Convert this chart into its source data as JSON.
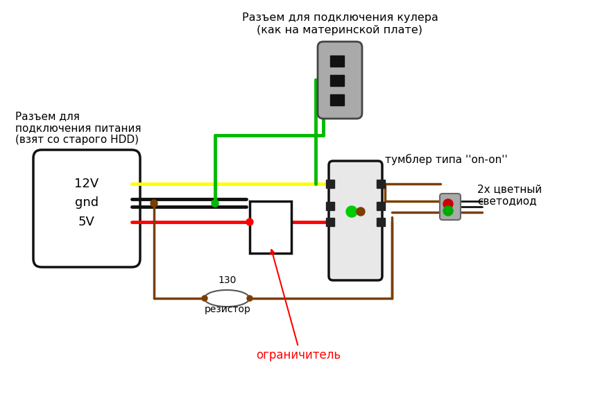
{
  "bg_color": "#ffffff",
  "title_connector_line1": "Разъем для подключения кулера",
  "title_connector_line2": "(как на материнской плате)",
  "title_power_line1": "Разъем для",
  "title_power_line2": "подключения питания",
  "title_power_line3": "(взят со старого HDD)",
  "label_12v": "12V",
  "label_gnd": "gnd",
  "label_5v": "5V",
  "label_tumbler": "тумблер типа ''on-on''",
  "label_resistor_val": "130",
  "label_resistor": "резистор",
  "label_limiter": "ограничитель",
  "label_led": "2х цветный\nсветодиод",
  "color_yellow": "#ffff00",
  "color_black": "#111111",
  "color_red": "#ff0000",
  "color_green": "#00bb00",
  "color_brown": "#7B3F00",
  "color_gray": "#888888",
  "color_lgray": "#aaaaaa",
  "color_white": "#ffffff",
  "color_darkgray": "#444444",
  "color_sw_bg": "#dddddd"
}
